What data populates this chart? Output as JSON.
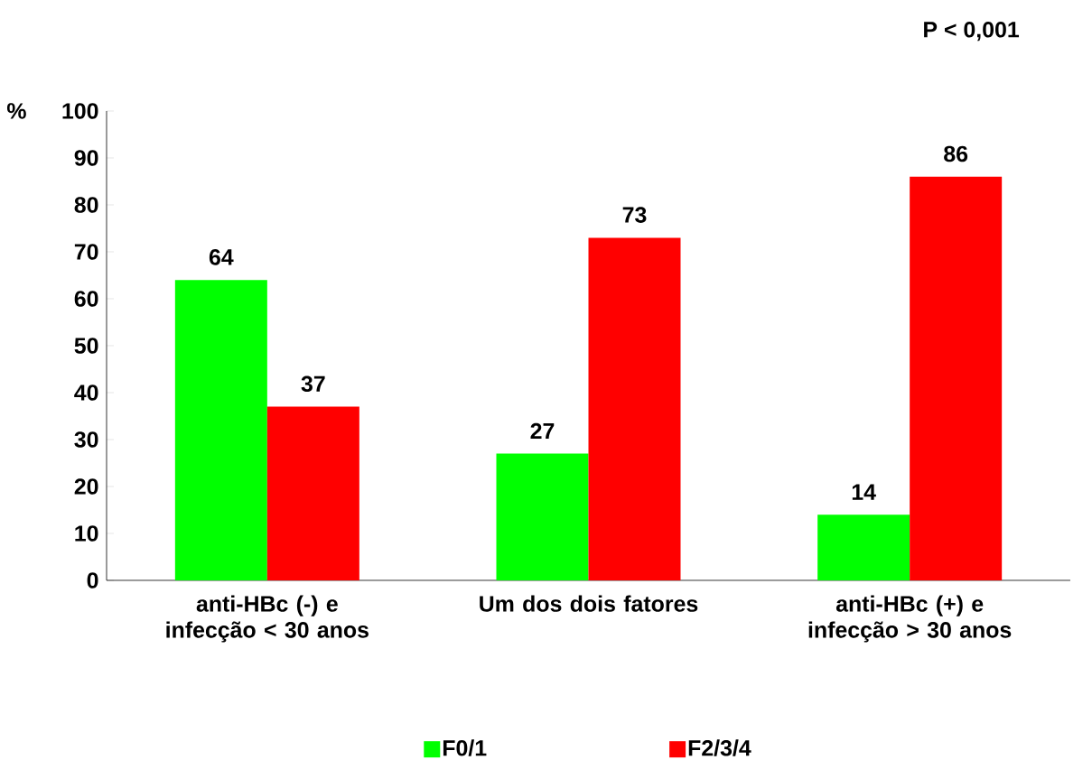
{
  "chart_data": {
    "type": "bar",
    "ylabel": "%",
    "annotations": [
      "P < 0,001"
    ],
    "categories": [
      "anti-HBc (-) e infecção < 30 anos",
      "Um dos dois fatores",
      "anti-HBc (+) e infecção > 30 anos"
    ],
    "series": [
      {
        "name": "F0/1",
        "color": "#00ff00",
        "values": [
          64,
          27,
          14
        ]
      },
      {
        "name": "F2/3/4",
        "color": "#ff0000",
        "values": [
          37,
          73,
          86
        ]
      }
    ],
    "ylim": [
      0,
      100
    ],
    "yticks": [
      0,
      10,
      20,
      30,
      40,
      50,
      60,
      70,
      80,
      90,
      100
    ],
    "data_labels": true,
    "legend": "bottom",
    "grid": false
  }
}
